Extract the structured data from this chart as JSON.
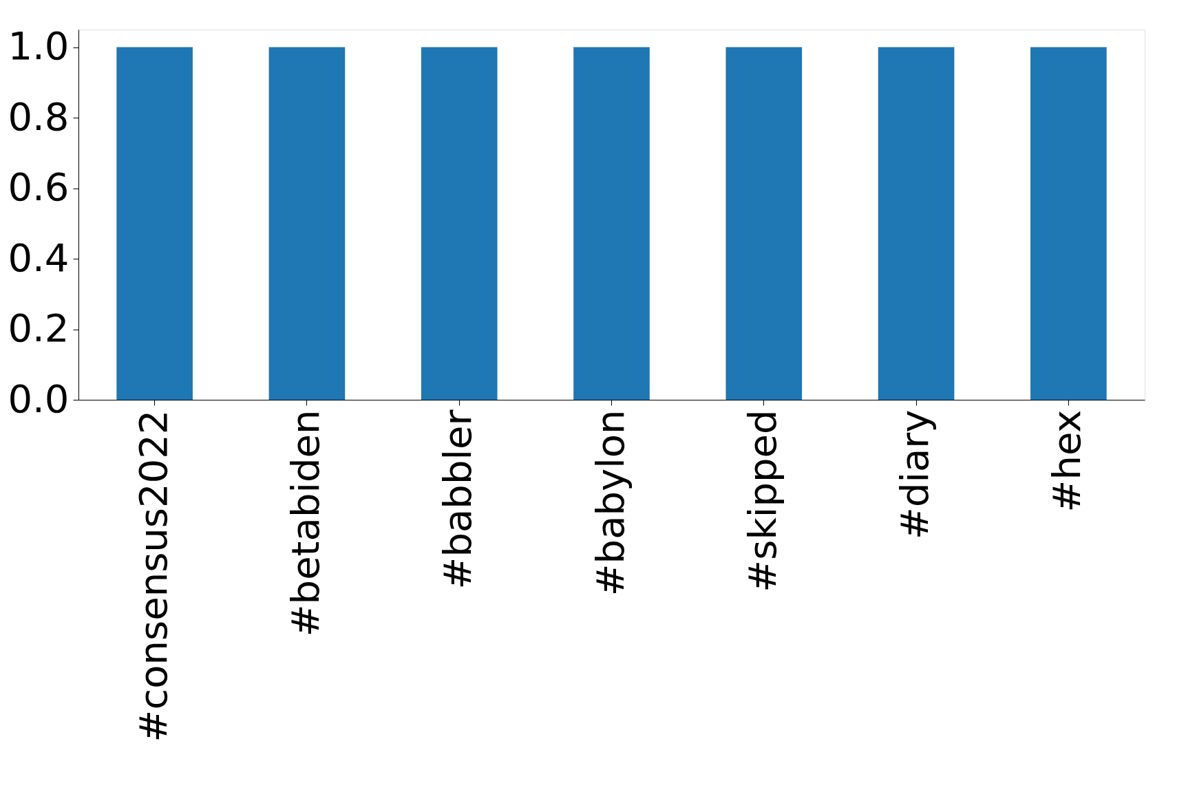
{
  "chart_data": {
    "type": "bar",
    "categories": [
      "#consensus2022",
      "#betabiden",
      "#babbler",
      "#babylon",
      "#skipped",
      "#diary",
      "#hex"
    ],
    "values": [
      1.0,
      1.0,
      1.0,
      1.0,
      1.0,
      1.0,
      1.0
    ],
    "color": "#1f77b4",
    "ylim": [
      0,
      1.05
    ],
    "yticks": [
      {
        "value": 0,
        "label": "0.0"
      },
      {
        "value": 0.2,
        "label": "0.2"
      },
      {
        "value": 0.4,
        "label": "0.4"
      },
      {
        "value": 0.6,
        "label": "0.6"
      },
      {
        "value": 0.8,
        "label": "0.8"
      },
      {
        "value": 1.0,
        "label": "1.0"
      }
    ],
    "grid": false
  }
}
